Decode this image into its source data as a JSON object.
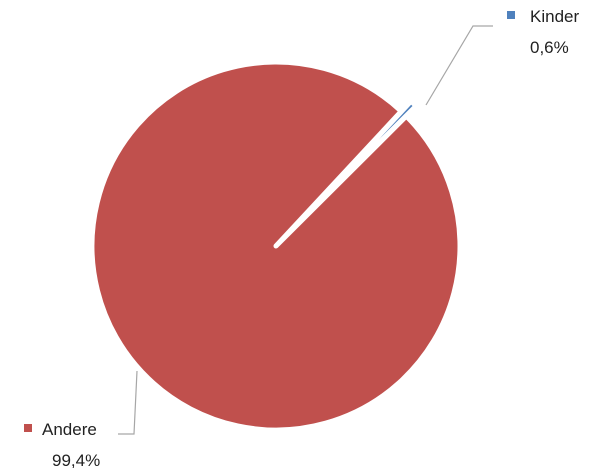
{
  "chart_data": {
    "type": "pie",
    "title": "",
    "slices": [
      {
        "label": "Kinder",
        "value": 0.6,
        "value_label": "0,6%",
        "color": "#4F81BD"
      },
      {
        "label": "Andere",
        "value": 99.4,
        "value_label": "99,4%",
        "color": "#C0504D"
      }
    ],
    "start_angle_deg": 45,
    "direction": "clockwise",
    "exploded_slice": "Kinder",
    "data_labels": "outside with leader lines",
    "legend": "none"
  }
}
